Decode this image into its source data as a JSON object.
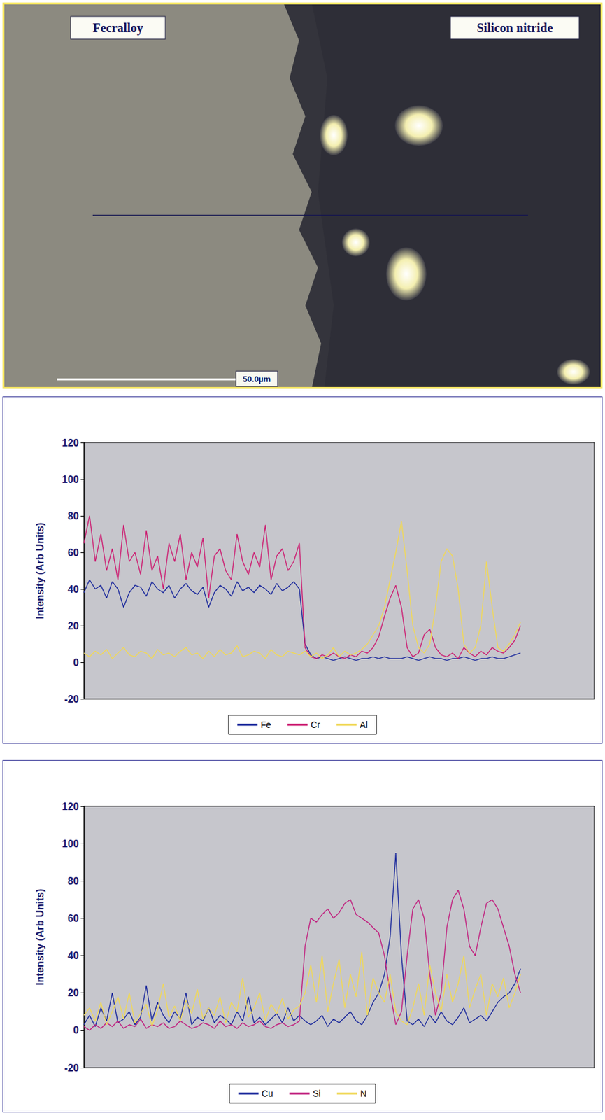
{
  "micrograph": {
    "left_label": "Fecralloy",
    "right_label": "Silicon nitride",
    "scale_bar": "50.0µm"
  },
  "chart_data": [
    {
      "type": "line",
      "y_label": "Intensity (Arb Units)",
      "x": [
        0,
        1,
        2,
        3,
        4,
        5,
        6,
        7,
        8,
        9,
        10,
        11,
        12,
        13,
        14,
        15,
        16,
        17,
        18,
        19,
        20,
        21,
        22,
        23,
        24,
        25,
        26,
        27,
        28,
        29,
        30,
        31,
        32,
        33,
        34,
        35,
        36,
        37,
        38,
        39,
        40,
        41,
        42,
        43,
        44,
        45,
        46,
        47,
        48,
        49,
        50,
        51,
        52,
        53,
        54,
        55,
        56,
        57,
        58,
        59,
        60,
        61,
        62,
        63,
        64,
        65,
        66,
        67,
        68,
        69,
        70,
        71,
        72,
        73,
        74,
        75,
        76,
        77
      ],
      "xlim": [
        0,
        90
      ],
      "ylim": [
        -20,
        120
      ],
      "yticks": [
        -20,
        0,
        20,
        40,
        60,
        80,
        100,
        120
      ],
      "grid": false,
      "legend": "bottom",
      "tick_labels": "y",
      "series": [
        {
          "name": "Fe",
          "color": "#1c2a9c",
          "values": [
            38,
            45,
            40,
            42,
            35,
            44,
            40,
            30,
            38,
            42,
            41,
            36,
            44,
            40,
            38,
            42,
            35,
            40,
            43,
            39,
            37,
            41,
            30,
            38,
            42,
            40,
            36,
            44,
            39,
            41,
            38,
            42,
            40,
            37,
            43,
            39,
            41,
            44,
            40,
            10,
            4,
            2,
            3,
            2,
            1,
            2,
            3,
            2,
            1,
            2,
            2,
            3,
            2,
            3,
            2,
            2,
            2,
            3,
            2,
            1,
            2,
            3,
            2,
            2,
            1,
            2,
            2,
            3,
            2,
            1,
            2,
            2,
            3,
            2,
            2,
            3,
            4,
            5
          ]
        },
        {
          "name": "Cr",
          "color": "#cc1f72",
          "values": [
            65,
            80,
            55,
            70,
            50,
            62,
            45,
            75,
            55,
            60,
            48,
            72,
            50,
            58,
            40,
            65,
            55,
            70,
            45,
            60,
            52,
            68,
            35,
            58,
            62,
            50,
            45,
            70,
            55,
            48,
            60,
            52,
            75,
            45,
            58,
            62,
            50,
            55,
            65,
            8,
            3,
            2,
            4,
            3,
            5,
            3,
            2,
            4,
            3,
            6,
            5,
            8,
            14,
            25,
            35,
            42,
            30,
            8,
            3,
            5,
            15,
            18,
            8,
            4,
            3,
            5,
            2,
            8,
            5,
            3,
            6,
            4,
            8,
            6,
            5,
            8,
            12,
            20
          ]
        },
        {
          "name": "Al",
          "color": "#f0d858",
          "values": [
            5,
            3,
            6,
            4,
            7,
            2,
            5,
            8,
            4,
            3,
            6,
            5,
            2,
            7,
            4,
            5,
            3,
            6,
            8,
            4,
            5,
            2,
            6,
            3,
            7,
            4,
            5,
            9,
            3,
            4,
            6,
            5,
            2,
            7,
            4,
            3,
            6,
            5,
            4,
            6,
            3,
            5,
            2,
            4,
            8,
            3,
            6,
            4,
            5,
            7,
            10,
            15,
            20,
            30,
            45,
            60,
            77,
            50,
            20,
            8,
            5,
            10,
            30,
            55,
            62,
            58,
            40,
            10,
            5,
            8,
            20,
            55,
            30,
            8,
            6,
            10,
            15,
            22
          ]
        }
      ]
    },
    {
      "type": "line",
      "y_label": "Intensity (Arb Units)",
      "x": [
        0,
        1,
        2,
        3,
        4,
        5,
        6,
        7,
        8,
        9,
        10,
        11,
        12,
        13,
        14,
        15,
        16,
        17,
        18,
        19,
        20,
        21,
        22,
        23,
        24,
        25,
        26,
        27,
        28,
        29,
        30,
        31,
        32,
        33,
        34,
        35,
        36,
        37,
        38,
        39,
        40,
        41,
        42,
        43,
        44,
        45,
        46,
        47,
        48,
        49,
        50,
        51,
        52,
        53,
        54,
        55,
        56,
        57,
        58,
        59,
        60,
        61,
        62,
        63,
        64,
        65,
        66,
        67,
        68,
        69,
        70,
        71,
        72,
        73,
        74,
        75,
        76,
        77
      ],
      "xlim": [
        0,
        90
      ],
      "ylim": [
        -20,
        120
      ],
      "yticks": [
        -20,
        0,
        20,
        40,
        60,
        80,
        100,
        120
      ],
      "grid": false,
      "legend": "bottom",
      "tick_labels": "y",
      "series": [
        {
          "name": "Cu",
          "color": "#1c2a9c",
          "values": [
            3,
            8,
            2,
            12,
            5,
            20,
            4,
            6,
            10,
            3,
            7,
            24,
            5,
            15,
            8,
            4,
            10,
            6,
            20,
            3,
            7,
            5,
            12,
            4,
            8,
            6,
            3,
            10,
            5,
            18,
            4,
            7,
            3,
            6,
            9,
            4,
            12,
            5,
            8,
            5,
            3,
            5,
            8,
            2,
            6,
            4,
            7,
            10,
            5,
            3,
            8,
            15,
            20,
            30,
            50,
            95,
            40,
            5,
            3,
            6,
            2,
            8,
            4,
            10,
            5,
            3,
            7,
            12,
            4,
            6,
            8,
            5,
            10,
            15,
            18,
            20,
            25,
            33
          ]
        },
        {
          "name": "Si",
          "color": "#c0207e",
          "values": [
            2,
            0,
            3,
            1,
            4,
            2,
            5,
            1,
            3,
            2,
            6,
            1,
            3,
            2,
            4,
            1,
            2,
            5,
            3,
            1,
            2,
            4,
            3,
            1,
            5,
            2,
            3,
            1,
            4,
            2,
            3,
            5,
            2,
            1,
            3,
            4,
            2,
            3,
            5,
            45,
            60,
            58,
            62,
            65,
            60,
            63,
            68,
            70,
            62,
            60,
            58,
            55,
            52,
            40,
            20,
            3,
            10,
            40,
            65,
            70,
            60,
            30,
            8,
            20,
            55,
            70,
            75,
            65,
            45,
            40,
            55,
            68,
            70,
            65,
            55,
            45,
            30,
            20
          ]
        },
        {
          "name": "N",
          "color": "#f0d858",
          "values": [
            8,
            12,
            5,
            15,
            3,
            10,
            18,
            6,
            20,
            4,
            9,
            14,
            2,
            11,
            25,
            7,
            13,
            5,
            16,
            9,
            22,
            6,
            12,
            8,
            18,
            4,
            15,
            10,
            28,
            7,
            12,
            20,
            5,
            14,
            9,
            17,
            6,
            11,
            13,
            20,
            35,
            15,
            40,
            10,
            25,
            38,
            12,
            30,
            18,
            42,
            8,
            28,
            20,
            15,
            30,
            10,
            5,
            3,
            12,
            25,
            8,
            35,
            20,
            10,
            30,
            15,
            25,
            40,
            12,
            22,
            30,
            8,
            25,
            18,
            28,
            12,
            20,
            30
          ]
        }
      ]
    }
  ]
}
